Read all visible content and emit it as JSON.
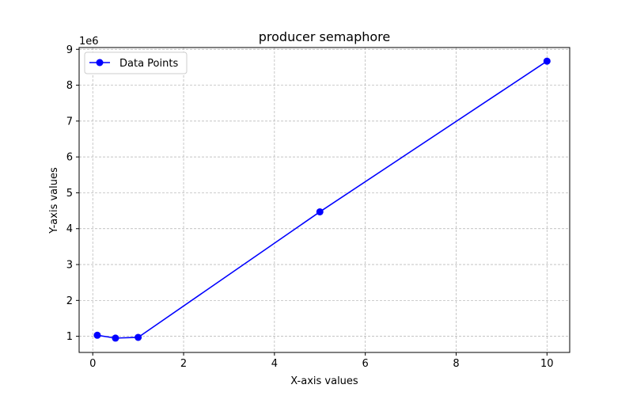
{
  "chart_data": {
    "type": "line",
    "title": "producer semaphore",
    "xlabel": "X-axis values",
    "ylabel": "Y-axis values",
    "y_multiplier_label": "1e6",
    "xlim": [
      -0.3,
      10.5
    ],
    "ylim": [
      0.55,
      9.05
    ],
    "xticks": [
      0,
      2,
      4,
      6,
      8,
      10
    ],
    "yticks": [
      1,
      2,
      3,
      4,
      5,
      6,
      7,
      8,
      9
    ],
    "grid": true,
    "legend_position": "top-left",
    "series": [
      {
        "name": "Data Points",
        "color": "#0000ff",
        "marker": "circle",
        "x": [
          0.1,
          0.5,
          1,
          5,
          10
        ],
        "y": [
          1.03,
          0.95,
          0.97,
          4.47,
          8.67
        ]
      }
    ]
  }
}
